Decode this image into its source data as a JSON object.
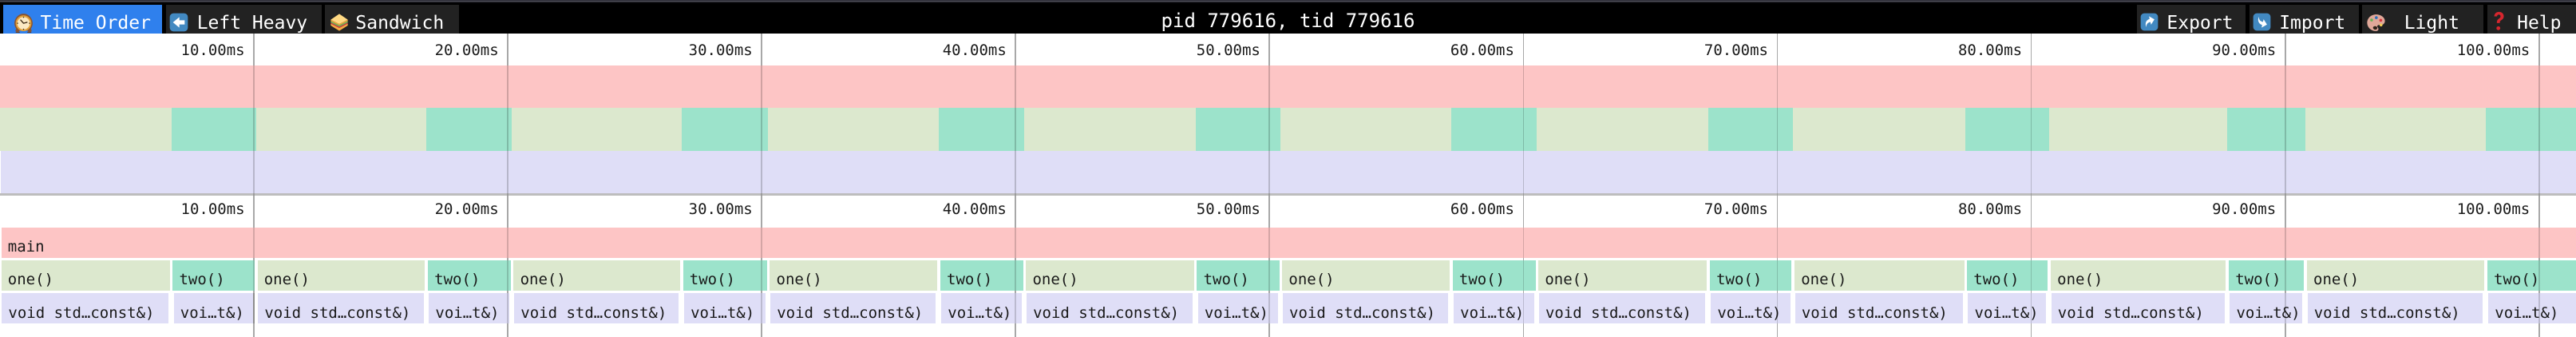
{
  "toolbar": {
    "tabs": [
      {
        "id": "time-order",
        "label": "Time Order",
        "icon": "clock-icon",
        "active": true
      },
      {
        "id": "left-heavy",
        "label": "Left Heavy",
        "icon": "left-arrow-icon",
        "active": false
      },
      {
        "id": "sandwich",
        "label": "Sandwich",
        "icon": "sandwich-icon",
        "active": false
      }
    ],
    "title": "pid 779616, tid 779616",
    "buttons": [
      {
        "id": "export",
        "label": "Export",
        "icon": "export-arrow-icon"
      },
      {
        "id": "import",
        "label": "Import",
        "icon": "import-arrow-icon"
      },
      {
        "id": "theme",
        "label": "Light",
        "icon": "palette-icon"
      },
      {
        "id": "help",
        "label": "Help",
        "icon": "question-mark-icon"
      }
    ],
    "colors": {
      "background": "#000000",
      "tab_background": "#222222",
      "active_tab": "#2f80ed",
      "text": "#ffffff"
    }
  },
  "chart_data": {
    "type": "flamegraph",
    "unit": "ms",
    "viewport_ms": [
      0,
      101.47
    ],
    "gridline_interval_ms": 10,
    "ruler_tick_labels": [
      "10.00ms",
      "20.00ms",
      "30.00ms",
      "40.00ms",
      "50.00ms",
      "60.00ms",
      "70.00ms",
      "80.00ms",
      "90.00ms",
      "100.00ms"
    ],
    "root_frame": {
      "name": "main",
      "start_ms": 0,
      "end_ms": 102.4
    },
    "frame_names": {
      "one": "one()",
      "two": "two()",
      "sleep_wide_label": "void std…const&)",
      "sleep_narrow_label": "voi…t&)"
    },
    "iterations": [
      {
        "one": [
          0.0,
          6.74
        ],
        "two": [
          6.75,
          10.078
        ],
        "sleep1": [
          0.02,
          6.68
        ],
        "sleep2": [
          6.79,
          10.018
        ]
      },
      {
        "one": [
          10.09,
          16.79
        ],
        "two": [
          16.8,
          20.167
        ],
        "sleep1": [
          10.11,
          16.73
        ],
        "sleep2": [
          16.84,
          20.107
        ]
      },
      {
        "one": [
          20.179,
          26.84
        ],
        "two": [
          26.85,
          30.257
        ],
        "sleep1": [
          20.199,
          26.78
        ],
        "sleep2": [
          26.89,
          30.197
        ]
      },
      {
        "one": [
          30.269,
          36.97
        ],
        "two": [
          36.98,
          40.346
        ],
        "sleep1": [
          30.289,
          36.91
        ],
        "sleep2": [
          37.02,
          40.286
        ]
      },
      {
        "one": [
          40.358,
          47.08
        ],
        "two": [
          47.09,
          50.436
        ],
        "sleep1": [
          40.378,
          47.02
        ],
        "sleep2": [
          47.13,
          50.376
        ]
      },
      {
        "one": [
          50.448,
          57.15
        ],
        "two": [
          57.16,
          60.525
        ],
        "sleep1": [
          50.468,
          57.09
        ],
        "sleep2": [
          57.2,
          60.465
        ]
      },
      {
        "one": [
          60.538,
          67.28
        ],
        "two": [
          67.29,
          70.615
        ],
        "sleep1": [
          60.558,
          67.22
        ],
        "sleep2": [
          67.33,
          70.555
        ]
      },
      {
        "one": [
          70.627,
          77.41
        ],
        "two": [
          77.42,
          80.704
        ],
        "sleep1": [
          70.647,
          77.35
        ],
        "sleep2": [
          77.46,
          80.644
        ]
      },
      {
        "one": [
          80.717,
          87.72
        ],
        "two": [
          87.73,
          90.794
        ],
        "sleep1": [
          80.737,
          87.66
        ],
        "sleep2": [
          87.77,
          90.734
        ]
      },
      {
        "one": [
          90.806,
          97.9
        ],
        "two": [
          97.91,
          102.4
        ],
        "sleep1": [
          90.826,
          97.84
        ],
        "sleep2": [
          97.95,
          102.35
        ]
      }
    ],
    "colors": {
      "main": "#fdc5c5",
      "one": "#dce8ce",
      "two": "#9ce3cb",
      "sleep": "#dfdef7",
      "gridline": "rgba(0,0,0,0.30)",
      "ruler_text": "#1a1a1a",
      "frame_text": "#191919",
      "chart_background": "#ffffff",
      "minimap_border": "#bdbdbd"
    }
  }
}
